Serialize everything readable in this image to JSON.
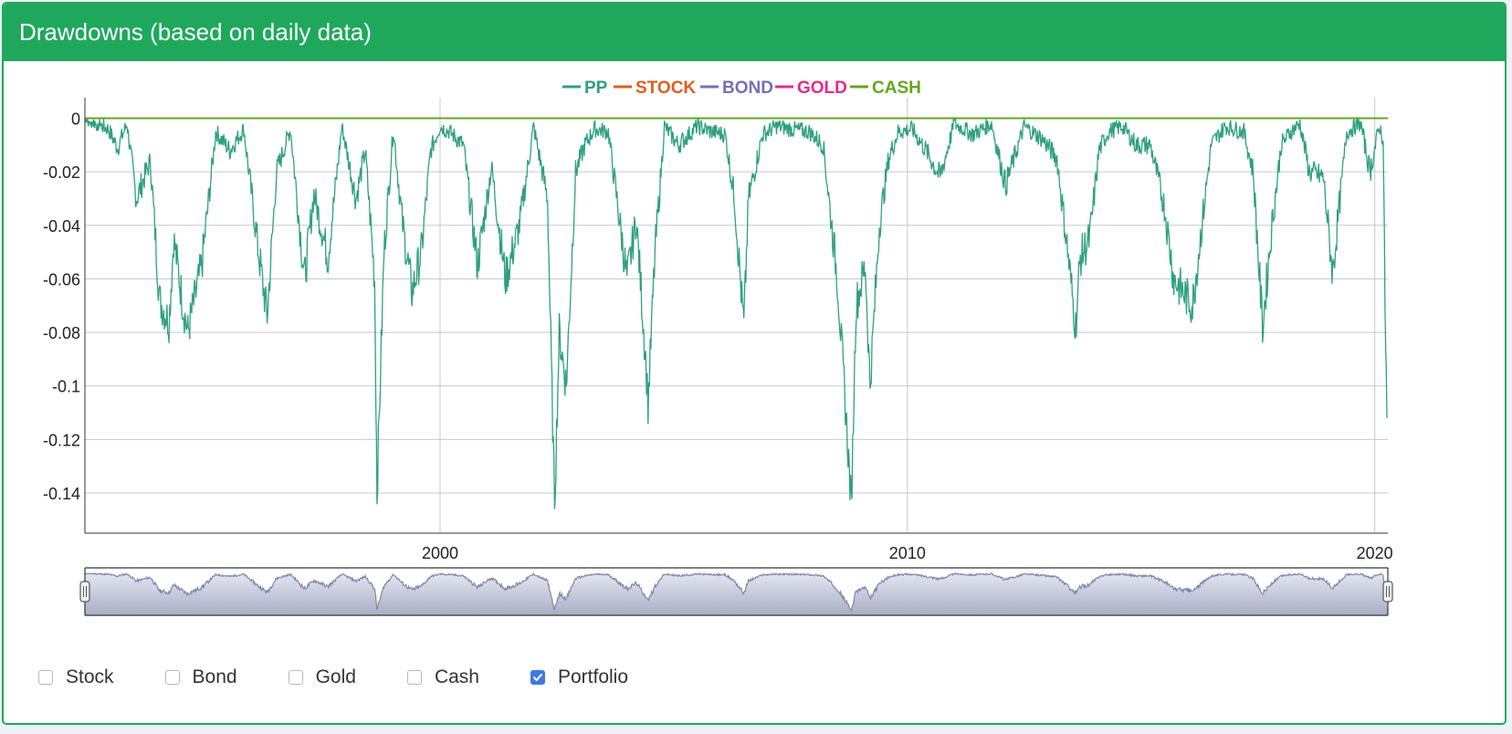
{
  "header": {
    "title": "Drawdowns (based on daily data)"
  },
  "chart_data": {
    "type": "line",
    "title": "",
    "xlabel": "",
    "ylabel": "",
    "x_range": [
      1992.4,
      2020.28
    ],
    "x_ticks": [
      2000,
      2010,
      2020
    ],
    "x_tick_labels": [
      "2000",
      "2010",
      "2020"
    ],
    "y_range": [
      -0.155,
      0.007
    ],
    "y_ticks": [
      0,
      -0.02,
      -0.04,
      -0.06,
      -0.08,
      -0.1,
      -0.12,
      -0.14
    ],
    "y_tick_labels": [
      "0",
      "-0.02",
      "-0.04",
      "-0.06",
      "-0.08",
      "-0.1",
      "-0.12",
      "-0.14"
    ],
    "grid": true,
    "legend_position": "top-center",
    "series": [
      {
        "name": "PP",
        "color": "#2fa07f",
        "x": [
          1992.4,
          1992.9,
          1993.1,
          1993.3,
          1993.5,
          1993.8,
          1994.0,
          1994.2,
          1994.3,
          1994.5,
          1994.6,
          1994.9,
          1995.2,
          1995.5,
          1995.8,
          1996.1,
          1996.3,
          1996.5,
          1996.8,
          1997.1,
          1997.3,
          1997.6,
          1997.9,
          1998.2,
          1998.4,
          1998.6,
          1998.65,
          1998.8,
          1999.0,
          1999.2,
          1999.4,
          1999.6,
          1999.8,
          2000.0,
          2000.2,
          2000.5,
          2000.8,
          2001.1,
          2001.4,
          2001.7,
          2002.0,
          2002.3,
          2002.45,
          2002.55,
          2002.7,
          2002.9,
          2003.1,
          2003.3,
          2003.6,
          2004.0,
          2004.2,
          2004.4,
          2004.45,
          2004.6,
          2004.8,
          2005.1,
          2005.5,
          2005.8,
          2006.1,
          2006.3,
          2006.5,
          2006.6,
          2006.9,
          2007.2,
          2007.5,
          2007.9,
          2008.2,
          2008.5,
          2008.7,
          2008.8,
          2008.9,
          2009.1,
          2009.2,
          2009.4,
          2009.6,
          2009.8,
          2010.1,
          2010.4,
          2010.7,
          2011.0,
          2011.4,
          2011.8,
          2012.1,
          2012.5,
          2012.9,
          2013.2,
          2013.4,
          2013.6,
          2013.7,
          2013.9,
          2014.1,
          2014.3,
          2014.6,
          2014.9,
          2015.2,
          2015.5,
          2015.7,
          2015.9,
          2016.1,
          2016.3,
          2016.5,
          2016.8,
          2017.2,
          2017.4,
          2017.6,
          2017.8,
          2018.0,
          2018.2,
          2018.4,
          2018.6,
          2018.9,
          2019.1,
          2019.4,
          2019.7,
          2019.9,
          2020.1,
          2020.18,
          2020.22,
          2020.26
        ],
        "values": [
          0,
          -0.004,
          -0.011,
          -0.002,
          -0.03,
          -0.016,
          -0.068,
          -0.076,
          -0.045,
          -0.07,
          -0.08,
          -0.055,
          -0.005,
          -0.012,
          -0.004,
          -0.048,
          -0.074,
          -0.02,
          -0.004,
          -0.06,
          -0.028,
          -0.052,
          -0.003,
          -0.03,
          -0.012,
          -0.06,
          -0.14,
          -0.05,
          -0.004,
          -0.04,
          -0.065,
          -0.05,
          -0.012,
          -0.003,
          -0.005,
          -0.01,
          -0.055,
          -0.018,
          -0.06,
          -0.04,
          -0.003,
          -0.03,
          -0.145,
          -0.08,
          -0.1,
          -0.02,
          -0.01,
          -0.004,
          -0.005,
          -0.06,
          -0.038,
          -0.09,
          -0.107,
          -0.05,
          -0.003,
          -0.01,
          -0.003,
          -0.005,
          -0.006,
          -0.03,
          -0.078,
          -0.03,
          -0.006,
          -0.003,
          -0.004,
          -0.005,
          -0.01,
          -0.06,
          -0.115,
          -0.145,
          -0.07,
          -0.055,
          -0.1,
          -0.04,
          -0.015,
          -0.005,
          -0.004,
          -0.012,
          -0.022,
          -0.002,
          -0.006,
          -0.002,
          -0.025,
          -0.003,
          -0.008,
          -0.015,
          -0.045,
          -0.078,
          -0.052,
          -0.045,
          -0.012,
          -0.005,
          -0.003,
          -0.01,
          -0.01,
          -0.033,
          -0.06,
          -0.065,
          -0.07,
          -0.04,
          -0.01,
          -0.003,
          -0.005,
          -0.02,
          -0.078,
          -0.04,
          -0.01,
          -0.005,
          -0.002,
          -0.02,
          -0.022,
          -0.058,
          -0.005,
          -0.002,
          -0.02,
          -0.003,
          -0.008,
          -0.068,
          -0.112
        ]
      },
      {
        "name": "STOCK",
        "color": "#d9601f",
        "x": [
          1992.4,
          2020.28
        ],
        "values": [
          0,
          0
        ]
      },
      {
        "name": "BOND",
        "color": "#7570b3",
        "x": [
          1992.4,
          2020.28
        ],
        "values": [
          0,
          0
        ]
      },
      {
        "name": "GOLD",
        "color": "#e7298a",
        "x": [
          1992.4,
          2020.28
        ],
        "values": [
          0,
          0
        ]
      },
      {
        "name": "CASH",
        "color": "#66a61e",
        "x": [
          1992.4,
          2020.28
        ],
        "values": [
          0,
          0
        ]
      }
    ]
  },
  "controls": [
    {
      "label": "Stock",
      "checked": false
    },
    {
      "label": "Bond",
      "checked": false
    },
    {
      "label": "Gold",
      "checked": false
    },
    {
      "label": "Cash",
      "checked": false
    },
    {
      "label": "Portfolio",
      "checked": true
    }
  ]
}
